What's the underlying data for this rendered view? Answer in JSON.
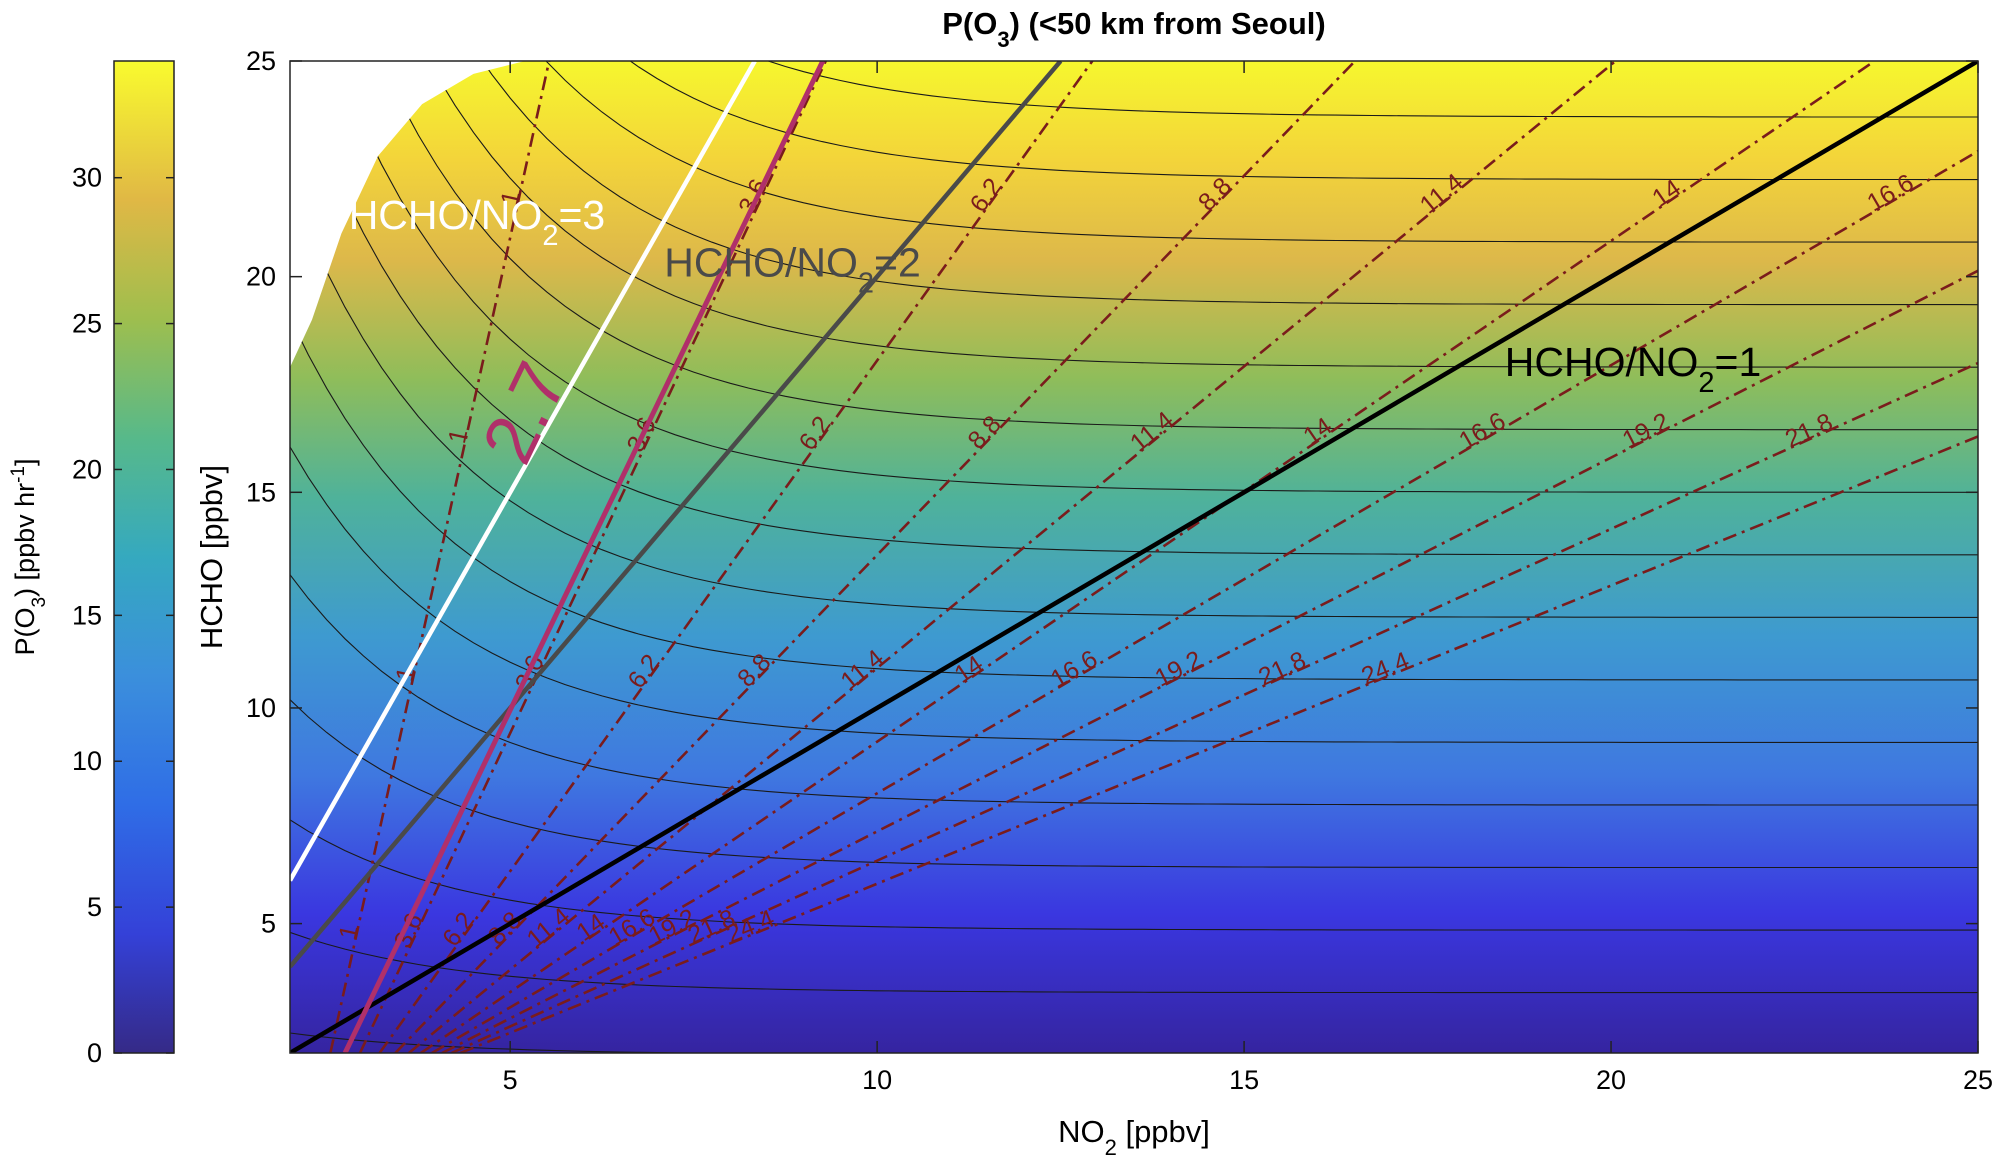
{
  "chart_data": {
    "type": "contour",
    "title_parts": {
      "prefix": "P(O",
      "subscript": "3",
      "suffix": ") (<50 km from Seoul)"
    },
    "xlabel_parts": {
      "prefix": "NO",
      "subscript": "2",
      "suffix": " [ppbv]"
    },
    "ylabel": "HCHO [ppbv]",
    "x_ticks": [
      "5",
      "10",
      "15",
      "20",
      "25"
    ],
    "y_ticks": [
      "5",
      "10",
      "15",
      "20",
      "25"
    ],
    "xlim": [
      2,
      25
    ],
    "ylim": [
      2,
      25
    ],
    "colorbar": {
      "label_parts": {
        "prefix": "P(O",
        "subscript": "3",
        "suffix": ") [ppbv hr",
        "superscript": "-1",
        "end": "]"
      },
      "ticks": [
        "0",
        "5",
        "10",
        "15",
        "20",
        "25",
        "30"
      ],
      "range": [
        0,
        34
      ],
      "colormap": "parula"
    },
    "filled_contours": {
      "levels_step": 2,
      "palette": [
        "#352a87",
        "#0f5cdd",
        "#1481d6",
        "#06a4ca",
        "#2eb7a4",
        "#87bf77",
        "#d1bb59",
        "#fec832",
        "#f9fb0e"
      ]
    },
    "ratio_lines": [
      {
        "label_parts": {
          "prefix": "HCHO/NO",
          "subscript": "2",
          "suffix": "=3"
        },
        "ratio": 3,
        "color": "#ffffff"
      },
      {
        "label_parts": {
          "prefix": "HCHO/NO",
          "subscript": "2",
          "suffix": "=2"
        },
        "ratio": 2,
        "color": "#4a4a4a"
      },
      {
        "label_parts": {
          "prefix": "HCHO/NO",
          "subscript": "2",
          "suffix": "=1"
        },
        "ratio": 1,
        "color": "#000000"
      }
    ],
    "highlight_line": {
      "label": "2.7",
      "ratio": 2.7,
      "color": "#b0306a"
    },
    "dashed_contours": {
      "color": "#7a1c1c",
      "levels": [
        "1",
        "3.6",
        "6.2",
        "8.8",
        "11.4",
        "14",
        "16.6",
        "19.2",
        "21.8",
        "24.4"
      ]
    }
  }
}
